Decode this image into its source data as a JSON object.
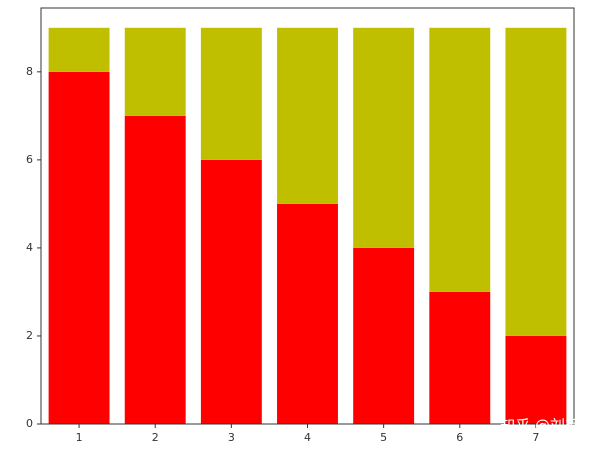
{
  "chart_data": {
    "type": "stacked-bar",
    "categories": [
      "1",
      "2",
      "3",
      "4",
      "5",
      "6",
      "7"
    ],
    "series": [
      {
        "color": "#ff0000",
        "values": [
          8,
          7,
          6,
          5,
          4,
          3,
          2
        ]
      },
      {
        "color": "#bfbf00",
        "values": [
          1,
          2,
          3,
          4,
          5,
          6,
          7
        ]
      }
    ],
    "ylim": [
      0,
      9.45
    ],
    "yticks": [
      0,
      2,
      4,
      6,
      8
    ],
    "grid": false,
    "watermark": "知乎 @刘毛毛"
  }
}
